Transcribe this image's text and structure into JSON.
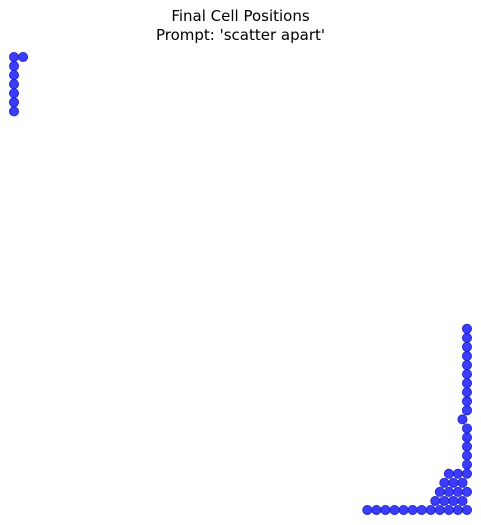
{
  "chart_data": {
    "type": "scatter",
    "title": "Final Cell Positions",
    "subtitle": "Prompt: 'scatter apart'",
    "xlabel": "",
    "ylabel": "",
    "axes": "off",
    "grid": false,
    "marker_color": "#1a1aff",
    "marker_edge_color": "#2020c0",
    "xlim": [
      0,
      100
    ],
    "ylim": [
      0,
      100
    ],
    "series": [
      {
        "points": [
          [
            0.0,
            100.0
          ],
          [
            2.0,
            100.0
          ],
          [
            0.0,
            98.0
          ],
          [
            0.0,
            96.0
          ],
          [
            0.0,
            94.0
          ],
          [
            0.0,
            92.0
          ],
          [
            0.0,
            90.0
          ],
          [
            0.0,
            88.0
          ],
          [
            78.0,
            0.0
          ],
          [
            80.0,
            0.0
          ],
          [
            82.0,
            0.0
          ],
          [
            84.0,
            0.0
          ],
          [
            86.0,
            0.0
          ],
          [
            88.0,
            0.0
          ],
          [
            90.0,
            0.0
          ],
          [
            92.0,
            0.0
          ],
          [
            94.0,
            0.0
          ],
          [
            96.0,
            0.0
          ],
          [
            98.0,
            0.0
          ],
          [
            100.0,
            0.0
          ],
          [
            93.0,
            2.0
          ],
          [
            95.0,
            2.0
          ],
          [
            97.0,
            2.0
          ],
          [
            99.0,
            2.0
          ],
          [
            94.0,
            4.0
          ],
          [
            96.0,
            4.0
          ],
          [
            98.0,
            4.0
          ],
          [
            100.0,
            4.0
          ],
          [
            95.0,
            6.0
          ],
          [
            97.0,
            6.0
          ],
          [
            99.0,
            6.0
          ],
          [
            96.0,
            8.0
          ],
          [
            98.0,
            8.0
          ],
          [
            100.0,
            8.0
          ],
          [
            100.0,
            10.0
          ],
          [
            100.0,
            12.0
          ],
          [
            100.0,
            14.0
          ],
          [
            100.0,
            16.0
          ],
          [
            100.0,
            18.0
          ],
          [
            99.0,
            20.0
          ],
          [
            100.0,
            22.0
          ],
          [
            100.0,
            24.0
          ],
          [
            100.0,
            26.0
          ],
          [
            100.0,
            28.0
          ],
          [
            100.0,
            30.0
          ],
          [
            100.0,
            32.0
          ],
          [
            100.0,
            34.0
          ],
          [
            100.0,
            36.0
          ],
          [
            100.0,
            38.0
          ],
          [
            100.0,
            40.0
          ]
        ]
      }
    ]
  }
}
